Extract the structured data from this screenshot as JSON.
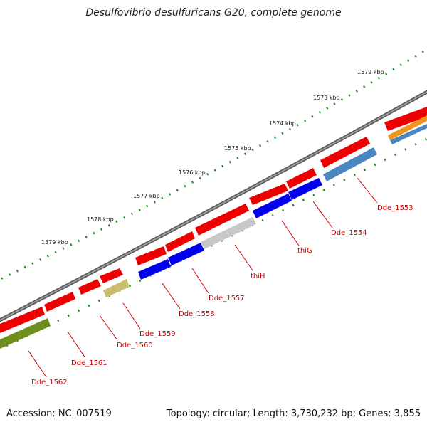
{
  "title": "Desulfovibrio desulfuricans G20, complete genome",
  "footer": {
    "accession": "Accession: NC_007519",
    "topology": "Topology: circular; Length: 3,730,232 bp; Genes: 3,855"
  },
  "kbp_ticks": [
    "1572 kbp",
    "1573 kbp",
    "1574 kbp",
    "1575 kbp",
    "1576 kbp",
    "1577 kbp",
    "1578 kbp",
    "1579 kbp"
  ],
  "gene_labels": [
    "Dde_1553",
    "Dde_1554",
    "thiG",
    "thiH",
    "Dde_1557",
    "Dde_1558",
    "Dde_1559",
    "Dde_1560",
    "Dde_1561",
    "Dde_1562"
  ],
  "colors": {
    "backbone": "#7a7a7a",
    "forward_cds": "#ee0000",
    "reverse_cds": "#0000ee",
    "reverse_cds_alt": "#4a86c0",
    "thiH_gene": "#c8c8c8",
    "olive_gene": "#6e8f1e",
    "khaki_gene": "#c8be6e",
    "orange_gene": "#f0961e",
    "tick": "#1a8a1a",
    "label": "#cc0000"
  }
}
